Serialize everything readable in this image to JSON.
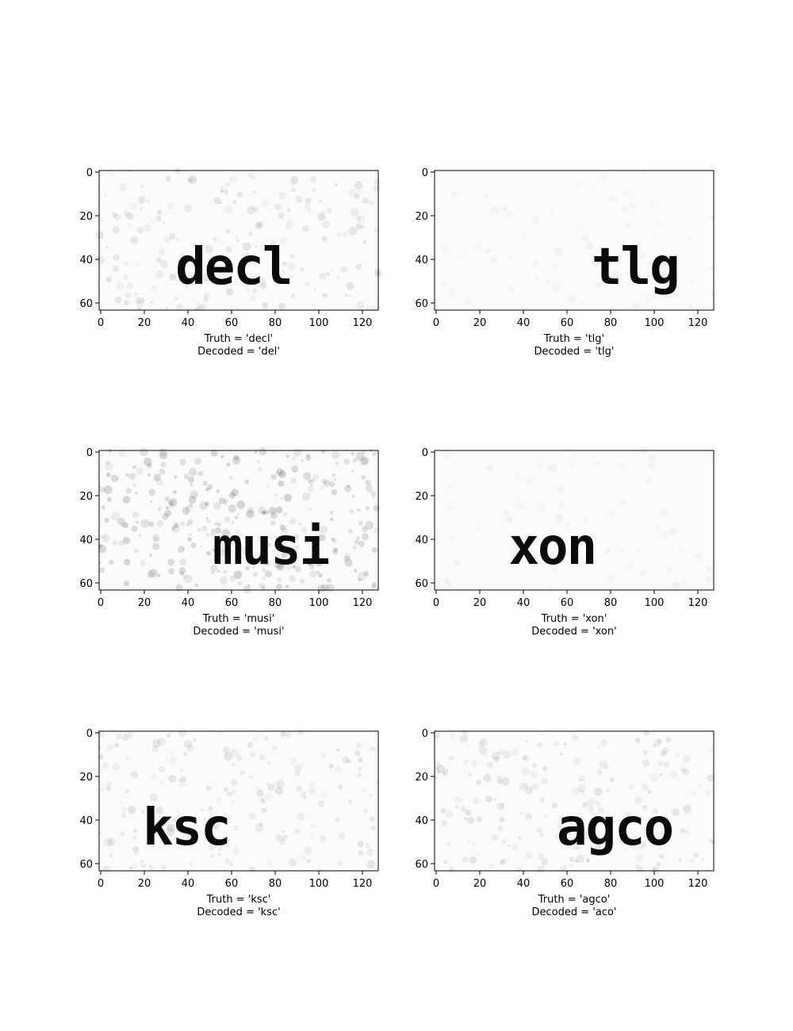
{
  "figure": {
    "axes": {
      "x_ticks": [
        "0",
        "20",
        "40",
        "60",
        "80",
        "100",
        "120"
      ],
      "y_ticks": [
        "0",
        "20",
        "40",
        "60"
      ],
      "x_range": [
        0,
        128
      ],
      "y_range": [
        0,
        64
      ]
    },
    "panels": [
      {
        "word": "decl",
        "truth": "Truth = 'decl'",
        "decoded": "Decoded = 'del'",
        "word_x": 35,
        "noise": "medium"
      },
      {
        "word": "tlg",
        "truth": "Truth = 'tlg'",
        "decoded": "Decoded = 'tlg'",
        "word_x": 72,
        "noise": "light"
      },
      {
        "word": "musi",
        "truth": "Truth = 'musi'",
        "decoded": "Decoded = 'musi'",
        "word_x": 52,
        "noise": "heavy"
      },
      {
        "word": "xon",
        "truth": "Truth = 'xon'",
        "decoded": "Decoded = 'xon'",
        "word_x": 34,
        "noise": "light"
      },
      {
        "word": "ksc",
        "truth": "Truth = 'ksc'",
        "decoded": "Decoded = 'ksc'",
        "word_x": 20,
        "noise": "medium"
      },
      {
        "word": "agco",
        "truth": "Truth = 'agco'",
        "decoded": "Decoded = 'aco'",
        "word_x": 56,
        "noise": "medium"
      }
    ]
  }
}
